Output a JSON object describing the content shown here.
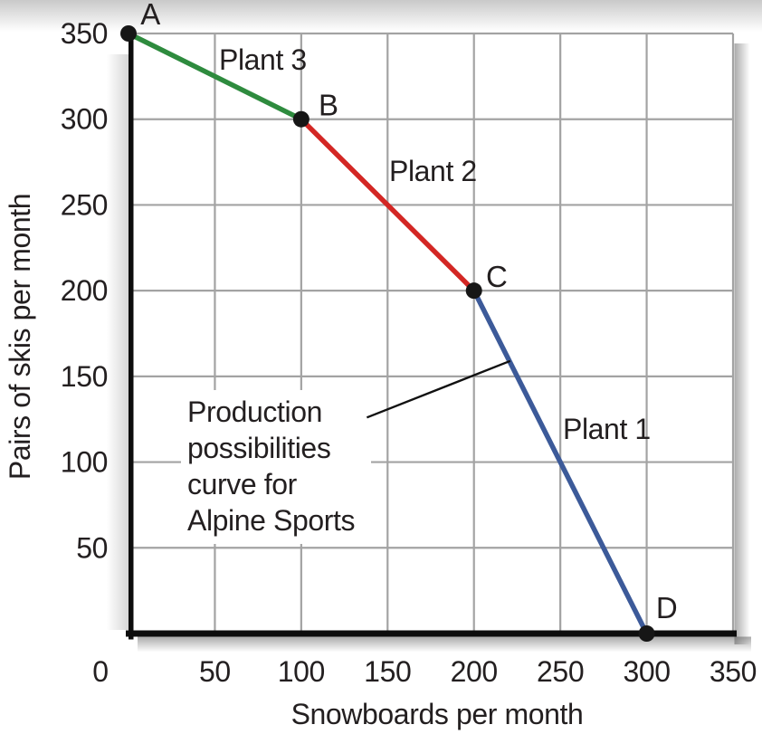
{
  "chart_data": {
    "type": "line",
    "title": "",
    "xlabel": "Snowboards per month",
    "ylabel": "Pairs of skis per month",
    "xlim": [
      0,
      350
    ],
    "ylim": [
      0,
      350
    ],
    "xticks": [
      0,
      50,
      100,
      150,
      200,
      250,
      300,
      350
    ],
    "yticks": [
      50,
      100,
      150,
      200,
      250,
      300,
      350
    ],
    "grid": true,
    "legend_position": "none (series labeled inline on chart)",
    "series": [
      {
        "name": "Plant 3",
        "color": "#2e8b3e",
        "points": [
          [
            0,
            350
          ],
          [
            100,
            300
          ]
        ]
      },
      {
        "name": "Plant 2",
        "color": "#d32724",
        "points": [
          [
            100,
            300
          ],
          [
            200,
            200
          ]
        ]
      },
      {
        "name": "Plant 1",
        "color": "#3c5a99",
        "points": [
          [
            200,
            200
          ],
          [
            300,
            0
          ]
        ]
      }
    ],
    "points": [
      {
        "label": "A",
        "x": 0,
        "y": 350
      },
      {
        "label": "B",
        "x": 100,
        "y": 300
      },
      {
        "label": "C",
        "x": 200,
        "y": 200
      },
      {
        "label": "D",
        "x": 300,
        "y": 0
      }
    ],
    "annotation": {
      "text": "Production possibilities curve for Alpine Sports",
      "lines": [
        "Production",
        "possibilities",
        "curve for",
        "Alpine Sports"
      ],
      "leader": {
        "from": [
          138,
          126
        ],
        "to": [
          221,
          159
        ]
      }
    },
    "colors": {
      "grid": "#a3a3a3",
      "axis": "#0d0d0d",
      "text": "#231f20",
      "dot": "#161616"
    }
  }
}
